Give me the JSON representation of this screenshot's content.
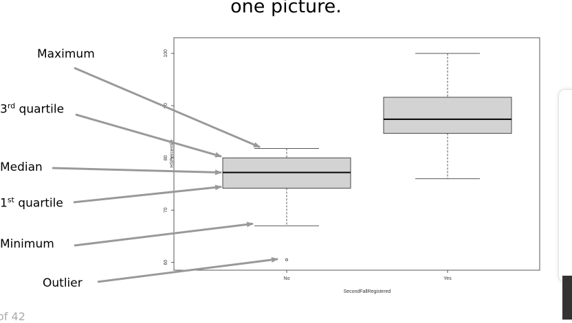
{
  "slide": {
    "heading": "one picture.",
    "page_number": "of 42"
  },
  "callouts": [
    {
      "id": "maximum",
      "text": "Maximum",
      "sup": ""
    },
    {
      "id": "q3",
      "text": "3",
      "sup": "rd",
      "after": " quartile"
    },
    {
      "id": "median",
      "text": "Median",
      "sup": ""
    },
    {
      "id": "q1",
      "text": "1",
      "sup": "st",
      "after": " quartile"
    },
    {
      "id": "minimum",
      "text": "Minimum",
      "sup": ""
    },
    {
      "id": "outlier",
      "text": "Outlier",
      "sup": ""
    }
  ],
  "colors": {
    "box_fill": "#d3d3d3",
    "arrow": "#999999",
    "frame": "#555555"
  },
  "chart_data": {
    "type": "box",
    "xlabel": "SecondFallRegistered",
    "ylabel": "HSPercentile",
    "categories": [
      "No",
      "Yes"
    ],
    "ylim": [
      58.5,
      103
    ],
    "yticks": [
      60,
      70,
      80,
      90,
      100
    ],
    "boxes": [
      {
        "category": "No",
        "whisker_low": 67,
        "q1": 74.2,
        "median": 77.2,
        "q3": 80,
        "whisker_high": 81.8,
        "outliers": [
          60.5
        ]
      },
      {
        "category": "Yes",
        "whisker_low": 76,
        "q1": 84.7,
        "median": 87.4,
        "q3": 91.6,
        "whisker_high": 100,
        "outliers": []
      }
    ]
  }
}
